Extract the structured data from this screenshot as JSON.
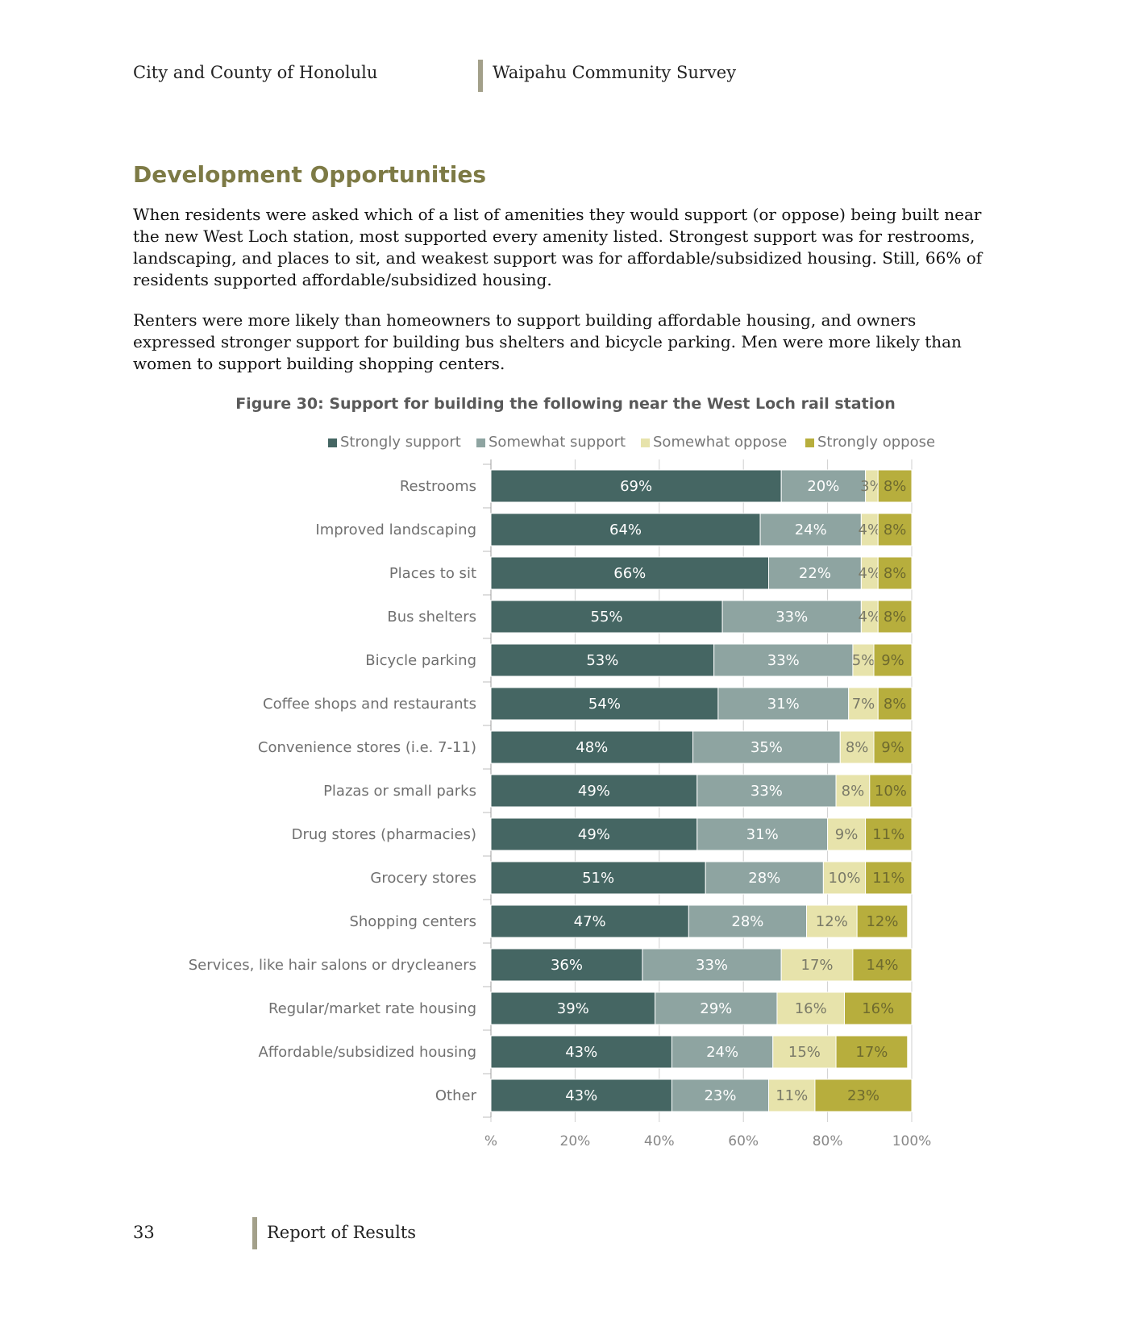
{
  "header": {
    "left": "City and County of Honolulu",
    "right": "Waipahu Community Survey"
  },
  "section": {
    "title": "Development Opportunities",
    "paragraph1": "When residents were asked which of a list of amenities they would support (or oppose) being built near the new West Loch station, most supported every amenity listed. Strongest support was for restrooms, landscaping, and places to sit, and weakest support was for affordable/subsidized housing. Still, 66% of residents supported affordable/subsidized housing.",
    "paragraph2": "Renters were more likely than homeowners to support building affordable housing, and owners expressed stronger support for building bus shelters and bicycle parking. Men were more likely than women to support building shopping centers."
  },
  "footer": {
    "page_number": "33",
    "text": "Report of Results"
  },
  "chart_data": {
    "type": "bar",
    "orientation": "horizontal",
    "stacked": true,
    "title": "Figure 30: Support for building the following near the West Loch rail station",
    "categories": [
      "Restrooms",
      "Improved landscaping",
      "Places to sit",
      "Bus shelters",
      "Bicycle parking",
      "Coffee shops and restaurants",
      "Convenience stores (i.e. 7-11)",
      "Plazas or small parks",
      "Drug stores (pharmacies)",
      "Grocery stores",
      "Shopping centers",
      "Services, like hair salons or drycleaners",
      "Regular/market rate housing",
      "Affordable/subsidized housing",
      "Other"
    ],
    "series": [
      {
        "name": "Strongly support",
        "color": "#456663",
        "label_color": "#ffffff",
        "values": [
          69,
          64,
          66,
          55,
          53,
          54,
          48,
          49,
          49,
          51,
          47,
          36,
          39,
          43,
          43
        ]
      },
      {
        "name": "Somewhat support",
        "color": "#8ea4a1",
        "label_color": "#ffffff",
        "values": [
          20,
          24,
          22,
          33,
          33,
          31,
          35,
          33,
          31,
          28,
          28,
          33,
          29,
          24,
          23
        ]
      },
      {
        "name": "Somewhat oppose",
        "color": "#e7e3ab",
        "label_color": "#7a7a68",
        "values": [
          3,
          4,
          4,
          4,
          5,
          7,
          8,
          8,
          9,
          10,
          12,
          17,
          16,
          15,
          11
        ]
      },
      {
        "name": "Strongly oppose",
        "color": "#b7ae3d",
        "label_color": "#6e6a2e",
        "values": [
          8,
          8,
          8,
          8,
          9,
          8,
          9,
          10,
          11,
          11,
          12,
          14,
          16,
          17,
          23
        ]
      }
    ],
    "value_suffix": "%",
    "xlim": [
      0,
      100
    ],
    "x_ticks": [
      0,
      20,
      40,
      60,
      80,
      100
    ],
    "x_tick_labels": [
      "%",
      "20%",
      "40%",
      "60%",
      "80%",
      "100%"
    ],
    "legend_position": "top",
    "grid": true
  }
}
